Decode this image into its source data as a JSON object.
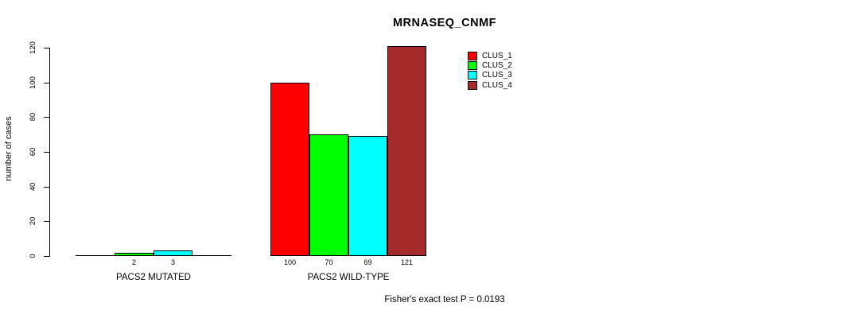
{
  "chart_data": {
    "type": "bar",
    "title": "MRNASEQ_CNMF",
    "xlabel": "",
    "ylabel": "number of cases",
    "ylim": [
      0,
      120
    ],
    "yticks": [
      0,
      20,
      40,
      60,
      80,
      100,
      120
    ],
    "grid": false,
    "legend_position": "upper-right",
    "categories": [
      "PACS2 MUTATED",
      "PACS2 WILD-TYPE"
    ],
    "series": [
      {
        "name": "CLUS_1",
        "color": "#ff0000",
        "values": [
          0,
          100
        ]
      },
      {
        "name": "CLUS_2",
        "color": "#00ff00",
        "values": [
          2,
          70
        ]
      },
      {
        "name": "CLUS_3",
        "color": "#00ffff",
        "values": [
          3,
          69
        ]
      },
      {
        "name": "CLUS_4",
        "color": "#a52a2a",
        "values": [
          0,
          121
        ]
      }
    ],
    "value_labels_shown": [
      [
        null,
        "2",
        "3",
        null
      ],
      [
        "100",
        "70",
        "69",
        "121"
      ]
    ],
    "annotation": "Fisher's exact test P = 0.0193"
  }
}
